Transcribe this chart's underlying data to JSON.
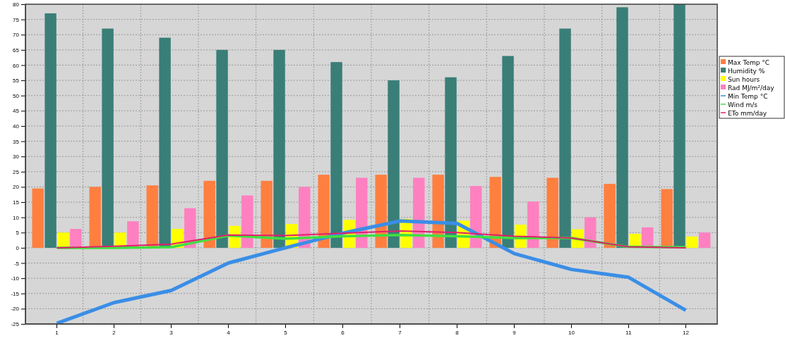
{
  "chart_data": {
    "type": "bar",
    "categories": [
      "1",
      "2",
      "3",
      "4",
      "5",
      "6",
      "7",
      "8",
      "9",
      "10",
      "11",
      "12"
    ],
    "series": [
      {
        "name": "Max Temp  °C",
        "color": "#ff7f3f",
        "values": [
          19.5,
          20,
          20.5,
          22,
          22,
          24,
          24,
          24,
          23.3,
          23,
          21,
          19.3
        ]
      },
      {
        "name": "Humidity  %",
        "color": "#3a7e78",
        "values": [
          77,
          72,
          69,
          65,
          65,
          61,
          55,
          56,
          63,
          72,
          79,
          80
        ]
      },
      {
        "name": "Sun  hours",
        "color": "#ffff00",
        "values": [
          5,
          5,
          6.2,
          7.2,
          7.8,
          9.2,
          9.5,
          8.9,
          7.6,
          6.1,
          4.6,
          3.7
        ]
      },
      {
        "name": "Rad  MJ/m²/day",
        "color": "#ff80c0",
        "values": [
          6.2,
          8.7,
          13,
          17.2,
          20,
          23,
          23,
          20.3,
          15.2,
          10,
          6.7,
          5
        ]
      },
      {
        "name": "Min Temp  °C",
        "type": "line",
        "color": "#3a8ee6",
        "values": [
          -24.8,
          -18,
          -14,
          -5,
          0,
          4.8,
          8.8,
          8,
          -1.9,
          -7.1,
          -9.7,
          -20.5
        ]
      },
      {
        "name": "Wind  m/s",
        "type": "line",
        "color": "#40e040",
        "values": [
          0,
          0,
          0.2,
          4,
          3,
          3.8,
          4.2,
          3.8,
          3.2,
          3.2,
          0.3,
          0.2
        ]
      },
      {
        "name": "ETo  mm/day",
        "type": "line",
        "color": "#e0206a",
        "values": [
          0,
          0.5,
          1.2,
          4.2,
          4,
          4.8,
          5.5,
          5,
          3.8,
          3.2,
          0.3,
          0
        ]
      }
    ],
    "ylim": [
      -25,
      80
    ],
    "yticks": [
      -25,
      -20,
      -15,
      -10,
      -5,
      0,
      5,
      10,
      15,
      20,
      25,
      30,
      35,
      40,
      45,
      50,
      55,
      60,
      65,
      70,
      75,
      80
    ],
    "grid": true,
    "legend": "right",
    "marker": "none"
  }
}
